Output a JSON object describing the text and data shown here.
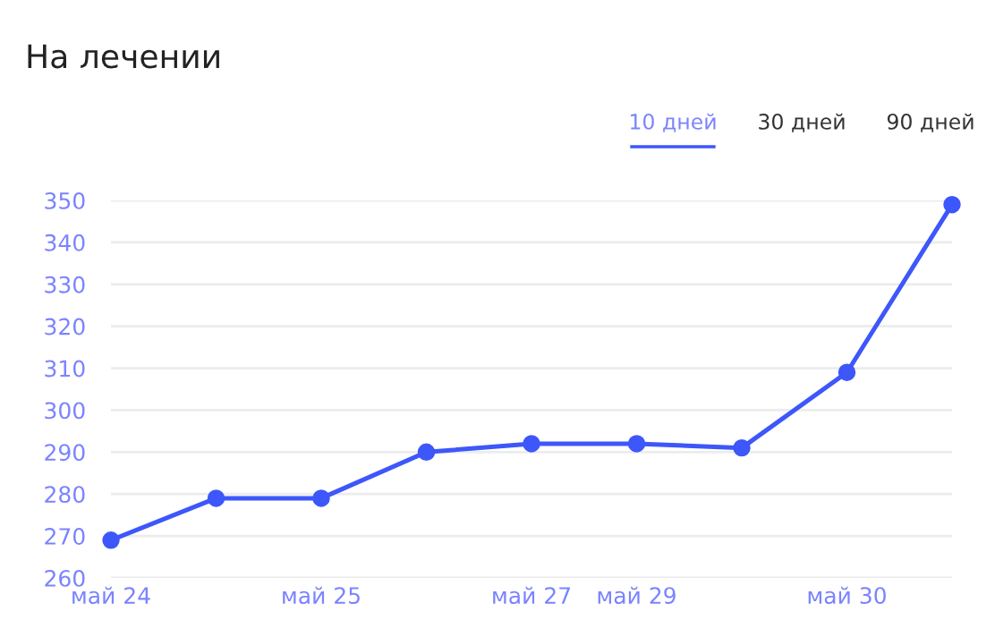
{
  "chart_data": {
    "type": "line",
    "title": "На лечении",
    "annotations": [
      "10 дней",
      "30 дней",
      "90 дней"
    ],
    "categories": [
      "май 24",
      null,
      "май 25",
      null,
      "май 27",
      "май 29",
      null,
      "май 30",
      null
    ],
    "series": [
      {
        "color": "#3d57fa",
        "values": [
          269,
          279,
          279,
          290,
          292,
          292,
          291,
          309,
          349
        ]
      }
    ],
    "ylim": [
      260,
      350
    ],
    "yticks": [
      260,
      270,
      280,
      290,
      300,
      310,
      320,
      330,
      340,
      350
    ],
    "grid": "y",
    "marker": "circle",
    "line_style": "solid",
    "legend": false
  }
}
